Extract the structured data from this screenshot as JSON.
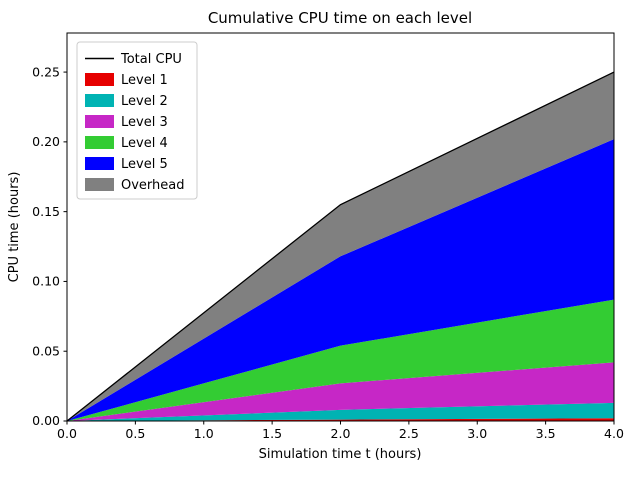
{
  "figure": {
    "title": "Cumulative CPU time on each level",
    "xlabel": "Simulation time t (hours)",
    "ylabel": "CPU time (hours)"
  },
  "chart_data": {
    "type": "area",
    "subtype": "stacked-area-with-total-line",
    "title": "Cumulative CPU time on each level",
    "xlabel": "Simulation time t (hours)",
    "ylabel": "CPU time (hours)",
    "x": [
      0.0,
      2.0,
      4.0
    ],
    "xlim": [
      0.0,
      4.0
    ],
    "ylim": [
      0.0,
      0.278
    ],
    "xticks": [
      0.0,
      0.5,
      1.0,
      1.5,
      2.0,
      2.5,
      3.0,
      3.5,
      4.0
    ],
    "yticks": [
      0.0,
      0.05,
      0.1,
      0.15,
      0.2,
      0.25
    ],
    "grid": false,
    "legend_position": "upper left",
    "stack_order_bottom_to_top": [
      "Level 1",
      "Level 2",
      "Level 3",
      "Level 4",
      "Level 5",
      "Overhead"
    ],
    "series": [
      {
        "name": "Level 1",
        "color": "#e60000",
        "values": [
          0,
          0.001,
          0.002
        ]
      },
      {
        "name": "Level 2",
        "color": "#00b3b3",
        "values": [
          0,
          0.007,
          0.011
        ]
      },
      {
        "name": "Level 3",
        "color": "#c627c6",
        "values": [
          0,
          0.019,
          0.029
        ]
      },
      {
        "name": "Level 4",
        "color": "#33cc33",
        "values": [
          0,
          0.027,
          0.045
        ]
      },
      {
        "name": "Level 5",
        "color": "#0000ff",
        "values": [
          0,
          0.064,
          0.115
        ]
      },
      {
        "name": "Overhead",
        "color": "#808080",
        "values": [
          0,
          0.037,
          0.048
        ]
      }
    ],
    "total_line": {
      "name": "Total CPU",
      "color": "#000000",
      "values": [
        0,
        0.155,
        0.25
      ]
    },
    "legend": [
      "Total CPU",
      "Level 1",
      "Level 2",
      "Level 3",
      "Level 4",
      "Level 5",
      "Overhead"
    ]
  }
}
